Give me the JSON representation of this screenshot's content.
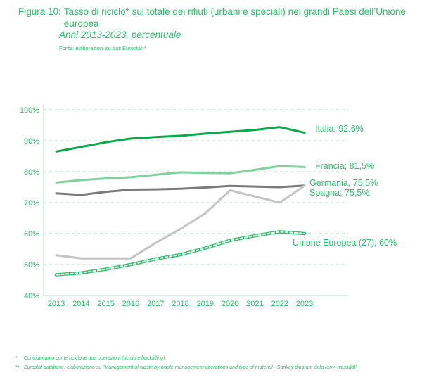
{
  "figure": {
    "number_label": "Figura 10:",
    "title": "Tasso di riciclo* sul totale dei rifiuti (urbani e speciali) nei grandi Paesi dell’Unione europea",
    "subtitle": "Anni 2013-2023, percentuale",
    "source": "Fonte: elaborazioni su dati Eurostat**"
  },
  "footnotes": [
    {
      "mark": "*",
      "text": "Consideriamo come riciclo le due operazioni (riciclo e backfilling)."
    },
    {
      "mark": "**",
      "text": "Eurostat database, elaborazione su “Management of waste by waste management operations and type of material - Sankey diagram data (env_wassdd)”"
    }
  ],
  "colors": {
    "accent": "#2bbf6a",
    "italia": "#0aa84a",
    "francia": "#7fd19d",
    "germania": "#7a7a7a",
    "spagna": "#c4c4c4",
    "ue": "#2bbf6a",
    "grid": "#a8e2bd"
  },
  "chart_data": {
    "type": "line",
    "title": "Tasso di riciclo* sul totale dei rifiuti (urbani e speciali) nei grandi Paesi dell’Unione europea",
    "subtitle": "Anni 2013-2023, percentuale",
    "xlabel": "",
    "ylabel": "",
    "x": [
      2013,
      2014,
      2015,
      2016,
      2017,
      2018,
      2019,
      2020,
      2021,
      2022,
      2023
    ],
    "x_tick_labels": [
      "2013",
      "2014",
      "2015",
      "2016",
      "2017",
      "2018",
      "2019",
      "2020",
      "2021",
      "2022",
      "2023"
    ],
    "ylim": [
      40,
      100
    ],
    "y_ticks": [
      40,
      50,
      60,
      70,
      80,
      90,
      100
    ],
    "y_tick_labels": [
      "40%",
      "50%",
      "60%",
      "70%",
      "80%",
      "90%",
      "100%"
    ],
    "grid": true,
    "legend": "direct-labels-right",
    "series": [
      {
        "key": "italia",
        "name": "Italia",
        "end_label": "Italia; 92,6%",
        "style": "solid-dark-green",
        "values": [
          86.5,
          88.0,
          89.5,
          90.7,
          91.2,
          91.6,
          92.3,
          92.9,
          93.5,
          94.4,
          92.6
        ]
      },
      {
        "key": "francia",
        "name": "Francia",
        "end_label": "Francia; 81,5%",
        "style": "solid-light-green",
        "values": [
          76.5,
          77.3,
          77.8,
          78.2,
          79.0,
          79.8,
          79.6,
          79.5,
          80.6,
          81.8,
          81.5
        ]
      },
      {
        "key": "germania",
        "name": "Germania",
        "end_label": "Germania, 75,5%",
        "style": "solid-dark-gray",
        "values": [
          73.0,
          72.5,
          73.5,
          74.2,
          74.3,
          74.5,
          74.9,
          75.4,
          75.2,
          75.0,
          75.5
        ]
      },
      {
        "key": "spagna",
        "name": "Spagna",
        "end_label": "Spagna; 75,5%",
        "style": "solid-light-gray",
        "values": [
          53.0,
          52.0,
          52.0,
          52.0,
          57.0,
          61.5,
          66.5,
          74.0,
          72.0,
          70.0,
          75.5
        ]
      },
      {
        "key": "ue",
        "name": "Unione Europea (27)",
        "end_label": "Unione Europea (27); 60%",
        "style": "hatched-green",
        "values": [
          46.7,
          47.3,
          48.5,
          50.0,
          51.8,
          53.2,
          55.3,
          57.8,
          59.3,
          60.6,
          60.0
        ]
      }
    ]
  }
}
